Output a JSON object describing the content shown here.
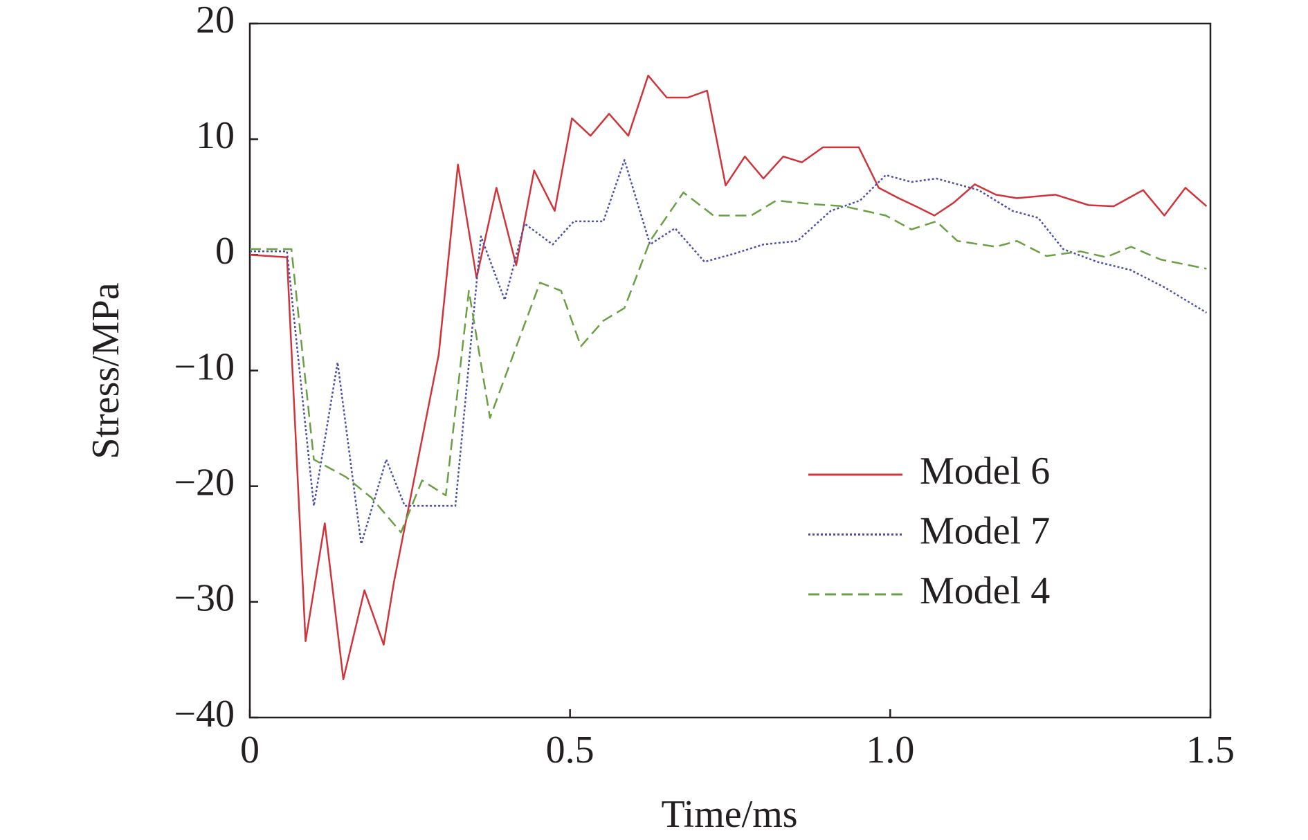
{
  "chart_data": {
    "type": "line",
    "xlabel": "Time/ms",
    "ylabel": "Stress/MPa",
    "xlim": [
      0,
      1.5
    ],
    "xticks": [
      0,
      0.5,
      {
        "value": 1,
        "label": "1.0"
      },
      1.5
    ],
    "ylim": [
      -40,
      20
    ],
    "yticks": [
      20,
      10,
      0,
      {
        "value": -10,
        "label": "−10"
      },
      {
        "value": -20,
        "label": "−20"
      },
      {
        "value": -30,
        "label": "−30"
      },
      {
        "value": -40,
        "label": "−40"
      }
    ],
    "grid": false,
    "legend": "lower right",
    "series": [
      {
        "name": "Model 6",
        "color": "#d0343b",
        "dash": "solid",
        "x": [
          0,
          0.058,
          0.087,
          0.117,
          0.146,
          0.179,
          0.209,
          0.225,
          0.269,
          0.295,
          0.325,
          0.354,
          0.385,
          0.416,
          0.444,
          0.476,
          0.503,
          0.532,
          0.561,
          0.591,
          0.622,
          0.651,
          0.684,
          0.714,
          0.743,
          0.773,
          0.802,
          0.833,
          0.862,
          0.895,
          0.951,
          0.982,
          1.013,
          1.04,
          1.069,
          1.099,
          1.132,
          1.165,
          1.198,
          1.258,
          1.31,
          1.349,
          1.395,
          1.428,
          1.461,
          1.494
        ],
        "values": [
          0,
          -0.2,
          -33.4,
          -23.2,
          -36.7,
          -29,
          -33.7,
          -28.3,
          -15.9,
          -8.6,
          7.8,
          -2,
          5.8,
          -0.9,
          7.3,
          3.8,
          11.8,
          10.3,
          12.2,
          10.3,
          15.5,
          13.6,
          13.6,
          14.2,
          6,
          8.5,
          6.6,
          8.5,
          8,
          9.3,
          9.3,
          5.8,
          4.9,
          4.2,
          3.4,
          4.5,
          6.1,
          5.2,
          4.9,
          5.2,
          4.3,
          4.2,
          5.6,
          3.4,
          5.8,
          4.2
        ]
      },
      {
        "name": "Model 7",
        "color": "#4a4fa8",
        "dash": "dotted",
        "x": [
          0,
          0.058,
          0.1,
          0.137,
          0.174,
          0.213,
          0.242,
          0.295,
          0.321,
          0.361,
          0.398,
          0.429,
          0.473,
          0.506,
          0.552,
          0.585,
          0.625,
          0.664,
          0.71,
          0.756,
          0.802,
          0.855,
          0.907,
          0.953,
          0.993,
          1.033,
          1.072,
          1.138,
          1.191,
          1.231,
          1.27,
          1.323,
          1.375,
          1.428,
          1.494
        ],
        "values": [
          0.3,
          0.3,
          -21.7,
          -9.3,
          -25,
          -17.7,
          -21.7,
          -21.7,
          -21.7,
          1.6,
          -3.9,
          2.7,
          0.9,
          2.9,
          2.9,
          8.2,
          0.9,
          2.3,
          -0.6,
          0.1,
          0.9,
          1.2,
          3.8,
          4.7,
          6.9,
          6.3,
          6.6,
          5.6,
          3.8,
          3.2,
          0.5,
          -0.6,
          -1.3,
          -2.8,
          -5
        ]
      },
      {
        "name": "Model 4",
        "color": "#6a9f45",
        "dash": "dashed",
        "x": [
          0,
          0.065,
          0.1,
          0.15,
          0.19,
          0.236,
          0.269,
          0.306,
          0.342,
          0.375,
          0.407,
          0.453,
          0.486,
          0.517,
          0.552,
          0.585,
          0.625,
          0.677,
          0.724,
          0.783,
          0.822,
          0.875,
          0.928,
          0.993,
          1.033,
          1.072,
          1.105,
          1.165,
          1.198,
          1.244,
          1.297,
          1.337,
          1.376,
          1.422,
          1.494
        ],
        "values": [
          0.5,
          0.5,
          -17.7,
          -19.2,
          -21,
          -24,
          -19.5,
          -20.8,
          -3.1,
          -14.1,
          -9.3,
          -2.4,
          -3.1,
          -7.9,
          -5.7,
          -4.6,
          1.2,
          5.4,
          3.4,
          3.4,
          4.7,
          4.4,
          4.2,
          3.4,
          2.2,
          2.9,
          1.2,
          0.7,
          1.2,
          -0.1,
          0.3,
          -0.2,
          0.7,
          -0.4,
          -1.2
        ]
      }
    ]
  }
}
